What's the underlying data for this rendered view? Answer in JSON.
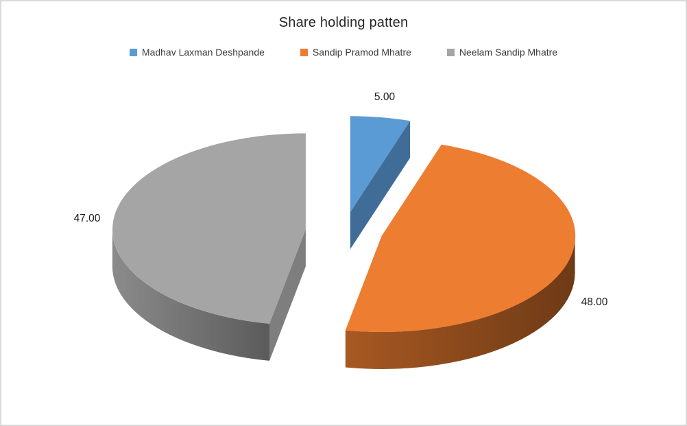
{
  "window": {
    "background": "#FFFFFF",
    "border_color": "#D9D9D9"
  },
  "chart": {
    "title": "Share holding patten",
    "legend": {
      "position": "top",
      "items": [
        {
          "label": "Madhav Laxman Deshpande",
          "color": "#5B9BD5"
        },
        {
          "label": "Sandip Pramod Mhatre",
          "color": "#ED7D31"
        },
        {
          "label": "Neelam Sandip Mhatre",
          "color": "#A5A5A5"
        }
      ]
    }
  },
  "chart_data": {
    "type": "pie",
    "variant": "3d-exploded",
    "title": "Share holding patten",
    "categories": [
      "Madhav Laxman Deshpande",
      "Sandip Pramod Mhatre",
      "Neelam Sandip Mhatre"
    ],
    "values": [
      5,
      48,
      47
    ],
    "value_labels": [
      "5.00",
      "48.00",
      "47.00"
    ],
    "colors": [
      "#5B9BD5",
      "#ED7D31",
      "#A5A5A5"
    ],
    "side_colors": [
      "#3F6D98",
      "#99511F",
      "#7E7E7E"
    ],
    "total": 100,
    "start_angle_deg": 0,
    "clockwise": true,
    "legend_position": "top",
    "labels_outside": true,
    "title_color": "#262626",
    "legend_text_color": "#3A3A3A",
    "label_color": "#1A1A1A",
    "background": "#FFFFFF"
  }
}
